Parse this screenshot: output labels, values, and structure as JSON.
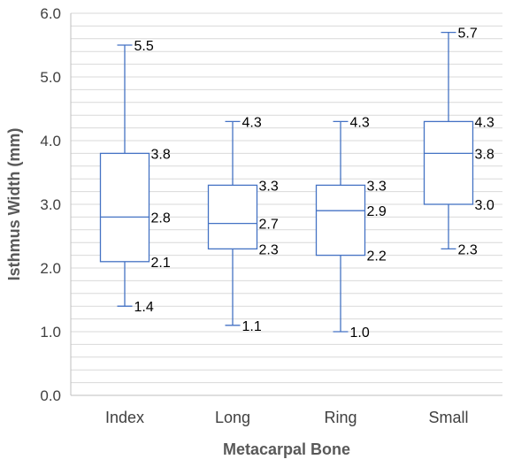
{
  "chart_data": {
    "type": "boxplot",
    "title": "",
    "xlabel": "Metacarpal Bone",
    "ylabel": "Isthmus Width (mm)",
    "ylim": [
      0,
      6
    ],
    "y_ticks": [
      "0.0",
      "1.0",
      "2.0",
      "3.0",
      "4.0",
      "5.0",
      "6.0"
    ],
    "y_tick_values": [
      0,
      1,
      2,
      3,
      4,
      5,
      6
    ],
    "minor_gridlines_every": 0.2,
    "grid": true,
    "legend": "none",
    "colors": {
      "box": "#4472C4",
      "grid": "#d9d9d9",
      "axis": "#bfbfbf"
    },
    "categories": [
      "Index",
      "Long",
      "Ring",
      "Small"
    ],
    "boxes": [
      {
        "category": "Index",
        "min": 1.4,
        "q1": 2.1,
        "median": 2.8,
        "q3": 3.8,
        "max": 5.5,
        "labels": {
          "min": "1.4",
          "q1": "2.1",
          "median": "2.8",
          "q3": "3.8",
          "max": "5.5"
        }
      },
      {
        "category": "Long",
        "min": 1.1,
        "q1": 2.3,
        "median": 2.7,
        "q3": 3.3,
        "max": 4.3,
        "labels": {
          "min": "1.1",
          "q1": "2.3",
          "median": "2.7",
          "q3": "3.3",
          "max": "4.3"
        }
      },
      {
        "category": "Ring",
        "min": 1.0,
        "q1": 2.2,
        "median": 2.9,
        "q3": 3.3,
        "max": 4.3,
        "labels": {
          "min": "1.0",
          "q1": "2.2",
          "median": "2.9",
          "q3": "3.3",
          "max": "4.3"
        }
      },
      {
        "category": "Small",
        "min": 2.3,
        "q1": 3.0,
        "median": 3.8,
        "q3": 4.3,
        "max": 5.7,
        "labels": {
          "min": "2.3",
          "q1": "3.0",
          "median": "3.8",
          "q3": "4.3",
          "max": "5.7"
        }
      }
    ]
  }
}
